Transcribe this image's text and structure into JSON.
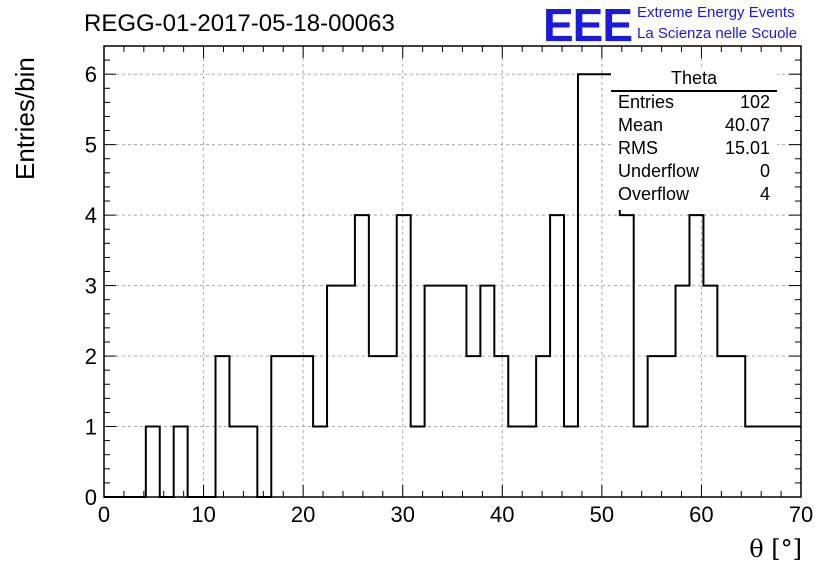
{
  "header": {
    "run_title": "REGG-01-2017-05-18-00063",
    "logo_text": "EEE",
    "logo_line1": "Extreme Energy Events",
    "logo_line2": "La Scienza nelle Scuole",
    "logo_color": "#1a1adf"
  },
  "stats": {
    "title": "Theta",
    "rows": [
      {
        "key": "Entries",
        "value": "102"
      },
      {
        "key": "Mean",
        "value": "40.07"
      },
      {
        "key": "RMS",
        "value": "15.01"
      },
      {
        "key": "Underflow",
        "value": "0"
      },
      {
        "key": "Overflow",
        "value": "4"
      }
    ]
  },
  "chart_data": {
    "type": "bar",
    "title": "REGG-01-2017-05-18-00063",
    "xlabel": "θ [°]",
    "ylabel": "Entries/bin",
    "xlim": [
      0,
      70
    ],
    "ylim": [
      0,
      6.4
    ],
    "grid": true,
    "bin_width": 1.4,
    "bin_edges_start": 0,
    "counts": [
      0,
      0,
      0,
      1,
      0,
      1,
      0,
      0,
      2,
      1,
      1,
      0,
      2,
      2,
      2,
      1,
      3,
      3,
      4,
      2,
      2,
      4,
      1,
      3,
      3,
      3,
      2,
      3,
      2,
      1,
      1,
      2,
      4,
      1,
      6,
      6,
      6,
      4,
      1,
      2,
      2,
      3,
      4,
      3,
      2,
      2,
      1,
      1,
      1,
      1
    ],
    "x_ticks": [
      0,
      10,
      20,
      30,
      40,
      50,
      60,
      70
    ],
    "y_ticks": [
      0,
      1,
      2,
      3,
      4,
      5,
      6
    ],
    "line_color": "#000000"
  }
}
